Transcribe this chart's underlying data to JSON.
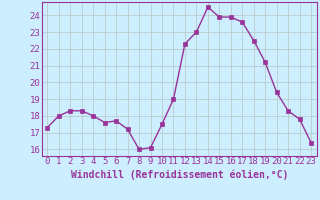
{
  "x": [
    0,
    1,
    2,
    3,
    4,
    5,
    6,
    7,
    8,
    9,
    10,
    11,
    12,
    13,
    14,
    15,
    16,
    17,
    18,
    19,
    20,
    21,
    22,
    23
  ],
  "y": [
    17.3,
    18.0,
    18.3,
    18.3,
    18.0,
    17.6,
    17.7,
    17.2,
    16.0,
    16.1,
    17.5,
    19.0,
    22.3,
    23.0,
    24.5,
    23.9,
    23.9,
    23.6,
    22.5,
    21.2,
    19.4,
    18.3,
    17.8,
    16.4
  ],
  "line_color": "#993399",
  "marker": "s",
  "marker_size": 2.5,
  "line_width": 1.0,
  "bg_color": "#cceeff",
  "grid_color": "#bbcccc",
  "xlabel": "Windchill (Refroidissement éolien,°C)",
  "xlabel_color": "#993399",
  "xlabel_fontsize": 7.0,
  "tick_color": "#993399",
  "tick_fontsize": 6.5,
  "ylim": [
    15.6,
    24.8
  ],
  "yticks": [
    16,
    17,
    18,
    19,
    20,
    21,
    22,
    23,
    24
  ],
  "xlim": [
    -0.5,
    23.5
  ],
  "xticks": [
    0,
    1,
    2,
    3,
    4,
    5,
    6,
    7,
    8,
    9,
    10,
    11,
    12,
    13,
    14,
    15,
    16,
    17,
    18,
    19,
    20,
    21,
    22,
    23
  ],
  "spine_color": "#993399"
}
